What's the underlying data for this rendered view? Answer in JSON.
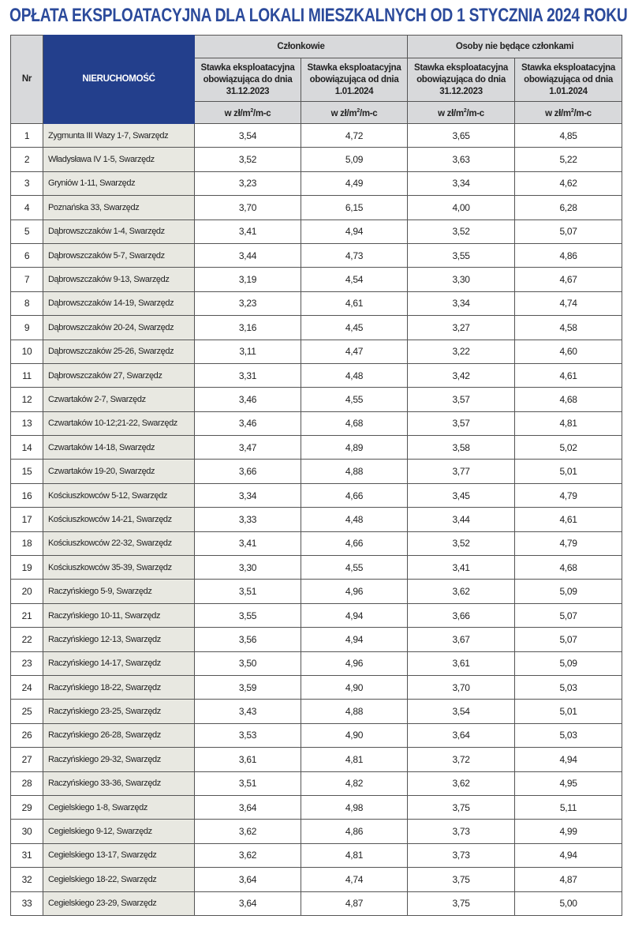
{
  "title": "OPŁATA EKSPLOATACYJNA DLA LOKALI MIESZKALNYCH OD 1 STYCZNIA 2024 ROKU",
  "colors": {
    "title": "#2b4a9b",
    "header_blue": "#233f8c",
    "header_gray": "#d8d9db",
    "name_column": "#e8e8e1"
  },
  "table": {
    "headers": {
      "nr": "Nr",
      "property": "NIERUCHOMOŚĆ",
      "group_members": "Członkowie",
      "group_non_members": "Osoby nie będące członkami",
      "rate_until_l1": "Stawka eksploatacyjna",
      "rate_until_l2": "obowiązująca do dnia",
      "rate_until_l3": "31.12.2023",
      "rate_from_l1": "Stawka eksploatacyjna",
      "rate_from_l2": "obowiązująca od dnia",
      "rate_from_l3": "1.01.2024",
      "unit_prefix": "w zł/m",
      "unit_sup": "2",
      "unit_suffix": "/m-c"
    },
    "rows": [
      [
        "1",
        "Zygmunta III Wazy 1-7, Swarzędz",
        "3,54",
        "4,72",
        "3,65",
        "4,85"
      ],
      [
        "2",
        "Władysława IV 1-5, Swarzędz",
        "3,52",
        "5,09",
        "3,63",
        "5,22"
      ],
      [
        "3",
        "Gryniów 1-11, Swarzędz",
        "3,23",
        "4,49",
        "3,34",
        "4,62"
      ],
      [
        "4",
        "Poznańska 33, Swarzędz",
        "3,70",
        "6,15",
        "4,00",
        "6,28"
      ],
      [
        "5",
        "Dąbrowszczaków 1-4, Swarzędz",
        "3,41",
        "4,94",
        "3,52",
        "5,07"
      ],
      [
        "6",
        "Dąbrowszczaków 5-7, Swarzędz",
        "3,44",
        "4,73",
        "3,55",
        "4,86"
      ],
      [
        "7",
        "Dąbrowszczaków 9-13, Swarzędz",
        "3,19",
        "4,54",
        "3,30",
        "4,67"
      ],
      [
        "8",
        "Dąbrowszczaków 14-19, Swarzędz",
        "3,23",
        "4,61",
        "3,34",
        "4,74"
      ],
      [
        "9",
        "Dąbrowszczaków 20-24, Swarzędz",
        "3,16",
        "4,45",
        "3,27",
        "4,58"
      ],
      [
        "10",
        "Dąbrowszczaków 25-26, Swarzędz",
        "3,11",
        "4,47",
        "3,22",
        "4,60"
      ],
      [
        "11",
        "Dąbrowszczaków 27, Swarzędz",
        "3,31",
        "4,48",
        "3,42",
        "4,61"
      ],
      [
        "12",
        "Czwartaków 2-7, Swarzędz",
        "3,46",
        "4,55",
        "3,57",
        "4,68"
      ],
      [
        "13",
        "Czwartaków 10-12;21-22, Swarzędz",
        "3,46",
        "4,68",
        "3,57",
        "4,81"
      ],
      [
        "14",
        "Czwartaków 14-18, Swarzędz",
        "3,47",
        "4,89",
        "3,58",
        "5,02"
      ],
      [
        "15",
        "Czwartaków 19-20, Swarzędz",
        "3,66",
        "4,88",
        "3,77",
        "5,01"
      ],
      [
        "16",
        "Kościuszkowców 5-12, Swarzędz",
        "3,34",
        "4,66",
        "3,45",
        "4,79"
      ],
      [
        "17",
        "Kościuszkowców 14-21, Swarzędz",
        "3,33",
        "4,48",
        "3,44",
        "4,61"
      ],
      [
        "18",
        "Kościuszkowców 22-32, Swarzędz",
        "3,41",
        "4,66",
        "3,52",
        "4,79"
      ],
      [
        "19",
        "Kościuszkowców 35-39, Swarzędz",
        "3,30",
        "4,55",
        "3,41",
        "4,68"
      ],
      [
        "20",
        "Raczyńskiego 5-9, Swarzędz",
        "3,51",
        "4,96",
        "3,62",
        "5,09"
      ],
      [
        "21",
        "Raczyńskiego 10-11, Swarzędz",
        "3,55",
        "4,94",
        "3,66",
        "5,07"
      ],
      [
        "22",
        "Raczyńskiego 12-13, Swarzędz",
        "3,56",
        "4,94",
        "3,67",
        "5,07"
      ],
      [
        "23",
        "Raczyńskiego 14-17, Swarzędz",
        "3,50",
        "4,96",
        "3,61",
        "5,09"
      ],
      [
        "24",
        "Raczyńskiego 18-22, Swarzędz",
        "3,59",
        "4,90",
        "3,70",
        "5,03"
      ],
      [
        "25",
        "Raczyńskiego 23-25, Swarzędz",
        "3,43",
        "4,88",
        "3,54",
        "5,01"
      ],
      [
        "26",
        "Raczyńskiego 26-28, Swarzędz",
        "3,53",
        "4,90",
        "3,64",
        "5,03"
      ],
      [
        "27",
        "Raczyńskiego 29-32, Swarzędz",
        "3,61",
        "4,81",
        "3,72",
        "4,94"
      ],
      [
        "28",
        "Raczyńskiego 33-36, Swarzędz",
        "3,51",
        "4,82",
        "3,62",
        "4,95"
      ],
      [
        "29",
        "Cegielskiego 1-8, Swarzędz",
        "3,64",
        "4,98",
        "3,75",
        "5,11"
      ],
      [
        "30",
        "Cegielskiego 9-12, Swarzędz",
        "3,62",
        "4,86",
        "3,73",
        "4,99"
      ],
      [
        "31",
        "Cegielskiego 13-17, Swarzędz",
        "3,62",
        "4,81",
        "3,73",
        "4,94"
      ],
      [
        "32",
        "Cegielskiego 18-22, Swarzędz",
        "3,64",
        "4,74",
        "3,75",
        "4,87"
      ],
      [
        "33",
        "Cegielskiego 23-29, Swarzędz",
        "3,64",
        "4,87",
        "3,75",
        "5,00"
      ]
    ]
  }
}
